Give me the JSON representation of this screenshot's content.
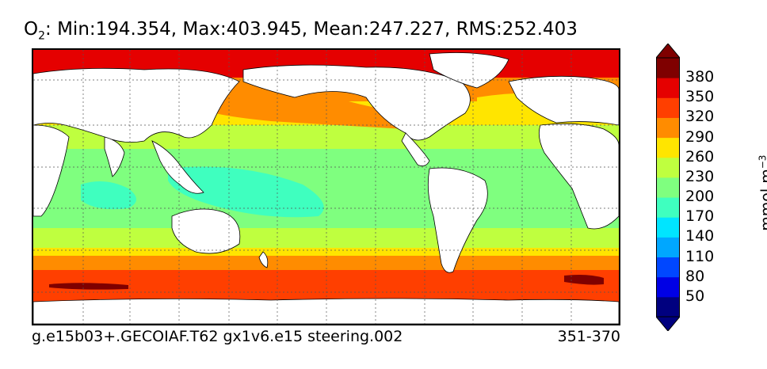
{
  "title": {
    "species": "O",
    "species_sub": "2",
    "stats": ": Min:194.354, Max:403.945, Mean:247.227, RMS:252.403"
  },
  "footer": {
    "case_name": "g.e15b03+.GECOIAF.T62 gx1v6.e15 steering.002",
    "years": "351-370"
  },
  "colorbar": {
    "unit_prefix": "mmol m",
    "unit_exponent": "−3",
    "ticks": [
      "50",
      "80",
      "110",
      "140",
      "170",
      "200",
      "230",
      "260",
      "290",
      "320",
      "350",
      "380"
    ],
    "colors": [
      "#00007f",
      "#0000e5",
      "#0047ff",
      "#00a7ff",
      "#00e5ff",
      "#3fffbf",
      "#7fff7f",
      "#bfff3f",
      "#ffe500",
      "#ff8c00",
      "#ff3f00",
      "#e50000",
      "#7f0000"
    ],
    "below_color": "#00007f",
    "above_color": "#7f0000"
  },
  "map": {
    "projection": "global cylindrical",
    "gridlines": true,
    "land_color": "#ffffff"
  }
}
